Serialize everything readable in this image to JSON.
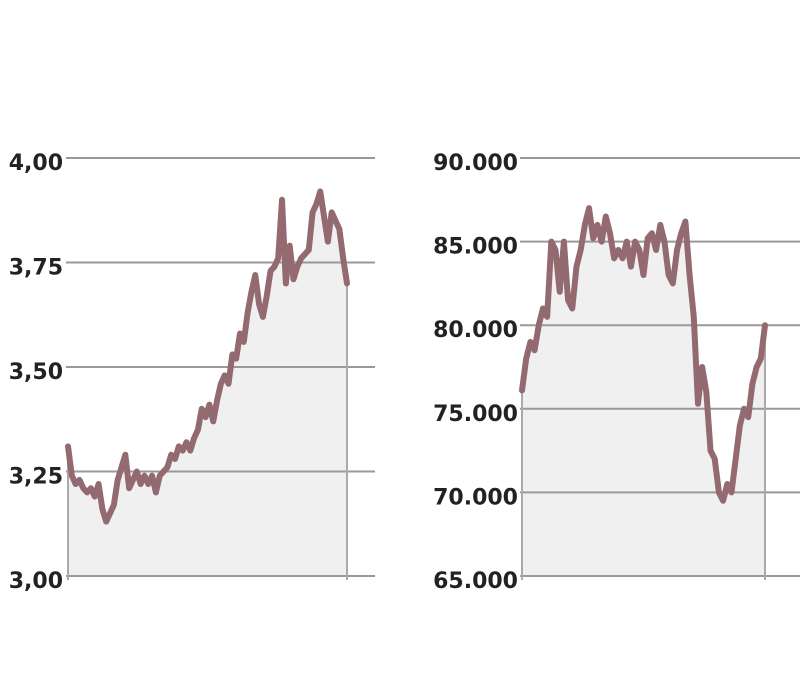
{
  "chart_data": [
    {
      "type": "line",
      "color": "#946a71",
      "area_color": "#f0f0f0",
      "grid": true,
      "ylim": [
        3.0,
        4.0
      ],
      "yticks": [
        {
          "value": 3.0,
          "label": "3,00"
        },
        {
          "value": 3.25,
          "label": "3,25"
        },
        {
          "value": 3.5,
          "label": "3,50"
        },
        {
          "value": 3.75,
          "label": "3,75"
        },
        {
          "value": 4.0,
          "label": "4,00"
        }
      ],
      "values": [
        3.31,
        3.24,
        3.22,
        3.23,
        3.21,
        3.2,
        3.21,
        3.19,
        3.22,
        3.16,
        3.13,
        3.15,
        3.17,
        3.23,
        3.26,
        3.29,
        3.21,
        3.23,
        3.25,
        3.22,
        3.24,
        3.22,
        3.24,
        3.2,
        3.24,
        3.25,
        3.26,
        3.29,
        3.28,
        3.31,
        3.3,
        3.32,
        3.3,
        3.33,
        3.35,
        3.4,
        3.38,
        3.41,
        3.37,
        3.42,
        3.46,
        3.48,
        3.46,
        3.53,
        3.52,
        3.58,
        3.56,
        3.63,
        3.68,
        3.72,
        3.65,
        3.62,
        3.67,
        3.73,
        3.74,
        3.76,
        3.9,
        3.7,
        3.79,
        3.71,
        3.74,
        3.76,
        3.77,
        3.78,
        3.87,
        3.89,
        3.92,
        3.86,
        3.8,
        3.87,
        3.85,
        3.83,
        3.76,
        3.7
      ]
    },
    {
      "type": "line",
      "color": "#946a71",
      "area_color": "#f0f0f0",
      "grid": true,
      "ylim": [
        65000,
        90000
      ],
      "yticks": [
        {
          "value": 65000,
          "label": "65.000"
        },
        {
          "value": 70000,
          "label": "70.000"
        },
        {
          "value": 75000,
          "label": "75.000"
        },
        {
          "value": 80000,
          "label": "80.000"
        },
        {
          "value": 85000,
          "label": "85.000"
        },
        {
          "value": 90000,
          "label": "90.000"
        }
      ],
      "values": [
        76100,
        78000,
        79000,
        78500,
        80000,
        81000,
        80500,
        85000,
        84500,
        82000,
        85000,
        81500,
        81000,
        83500,
        84500,
        86000,
        87000,
        85200,
        86000,
        85000,
        86500,
        85500,
        84000,
        84500,
        84000,
        85000,
        83500,
        85000,
        84500,
        83000,
        85200,
        85500,
        84500,
        86000,
        85000,
        83000,
        82500,
        84500,
        85500,
        86200,
        83000,
        80500,
        75300,
        77500,
        76000,
        72500,
        72000,
        70000,
        69500,
        70500,
        70000,
        72000,
        74000,
        75000,
        74500,
        76500,
        77500,
        78000,
        80000
      ]
    }
  ]
}
